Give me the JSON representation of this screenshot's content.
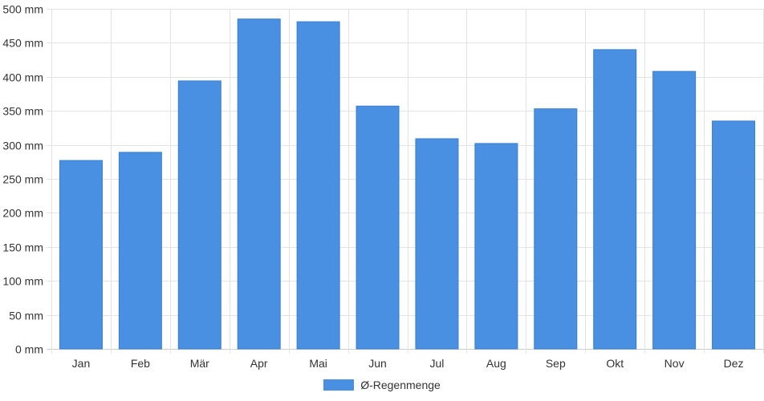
{
  "chart_data": {
    "type": "bar",
    "categories": [
      "Jan",
      "Feb",
      "Mär",
      "Apr",
      "Mai",
      "Jun",
      "Jul",
      "Aug",
      "Sep",
      "Okt",
      "Nov",
      "Dez"
    ],
    "series": [
      {
        "name": "Ø-Regenmenge",
        "values": [
          277,
          289,
          394,
          485,
          481,
          357,
          309,
          302,
          353,
          440,
          408,
          335
        ]
      }
    ],
    "y_unit": "mm",
    "ylim": [
      0,
      500
    ],
    "y_ticks": [
      0,
      50,
      100,
      150,
      200,
      250,
      300,
      350,
      400,
      450,
      500
    ],
    "y_tick_labels": [
      "0 mm",
      "50 mm",
      "100 mm",
      "150 mm",
      "200 mm",
      "250 mm",
      "300 mm",
      "350 mm",
      "400 mm",
      "450 mm",
      "500 mm"
    ],
    "grid": true,
    "legend_position": "bottom-center",
    "colors": {
      "bar": "#4a90e2",
      "bar_border": "#3a7fd0",
      "grid": "#e3e3e3",
      "axis": "#cccccc"
    }
  }
}
